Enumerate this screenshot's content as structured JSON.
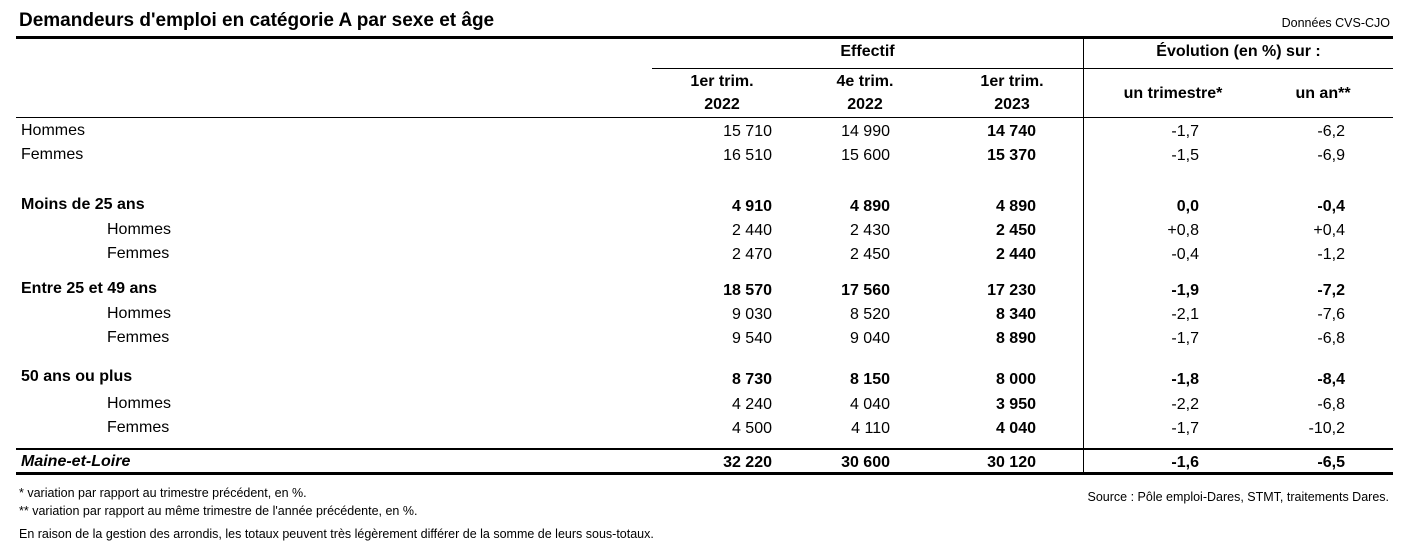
{
  "title": "Demandeurs d'emploi en catégorie A par sexe et âge",
  "data_note": "Données CVS-CJO",
  "header": {
    "effectif": "Effectif",
    "evolution": "Évolution (en %) sur :",
    "col1_l1": "1er trim.",
    "col1_l2": "2022",
    "col2_l1": "4e trim.",
    "col2_l2": "2022",
    "col3_l1": "1er trim.",
    "col3_l2": "2023",
    "col4": "un trimestre*",
    "col5": "un an**"
  },
  "rows": [
    {
      "label": "Hommes",
      "v1": "15 710",
      "v2": "14 990",
      "v3": "14 740",
      "v4": "-1,7",
      "v5": "-6,2"
    },
    {
      "label": "Femmes",
      "v1": "16 510",
      "v2": "15 600",
      "v3": "15 370",
      "v4": "-1,5",
      "v5": "-6,9"
    },
    {
      "label": "Moins de 25 ans",
      "v1": "4 910",
      "v2": "4 890",
      "v3": "4 890",
      "v4": "0,0",
      "v5": "-0,4"
    },
    {
      "label": "Hommes",
      "v1": "2 440",
      "v2": "2 430",
      "v3": "2 450",
      "v4": "+0,8",
      "v5": "+0,4"
    },
    {
      "label": "Femmes",
      "v1": "2 470",
      "v2": "2 450",
      "v3": "2 440",
      "v4": "-0,4",
      "v5": "-1,2"
    },
    {
      "label": "Entre 25 et 49 ans",
      "v1": "18 570",
      "v2": "17 560",
      "v3": "17 230",
      "v4": "-1,9",
      "v5": "-7,2"
    },
    {
      "label": "Hommes",
      "v1": "9 030",
      "v2": "8 520",
      "v3": "8 340",
      "v4": "-2,1",
      "v5": "-7,6"
    },
    {
      "label": "Femmes",
      "v1": "9 540",
      "v2": "9 040",
      "v3": "8 890",
      "v4": "-1,7",
      "v5": "-6,8"
    },
    {
      "label": "50 ans ou plus",
      "v1": "8 730",
      "v2": "8 150",
      "v3": "8 000",
      "v4": "-1,8",
      "v5": "-8,4"
    },
    {
      "label": "Hommes",
      "v1": "4 240",
      "v2": "4 040",
      "v3": "3 950",
      "v4": "-2,2",
      "v5": "-6,8"
    },
    {
      "label": "Femmes",
      "v1": "4 500",
      "v2": "4 110",
      "v3": "4 040",
      "v4": "-1,7",
      "v5": "-10,2"
    },
    {
      "label": "Maine-et-Loire",
      "v1": "32 220",
      "v2": "30 600",
      "v3": "30 120",
      "v4": "-1,6",
      "v5": "-6,5"
    }
  ],
  "footnotes": {
    "note1": "* variation par rapport au trimestre précédent, en %.",
    "note2": "** variation par rapport au même trimestre de l'année précédente, en %.",
    "note3": "En raison de la gestion des arrondis, les totaux peuvent très légèrement différer de la somme de leurs sous-totaux.",
    "source": "Source : Pôle emploi-Dares, STMT, traitements Dares."
  }
}
